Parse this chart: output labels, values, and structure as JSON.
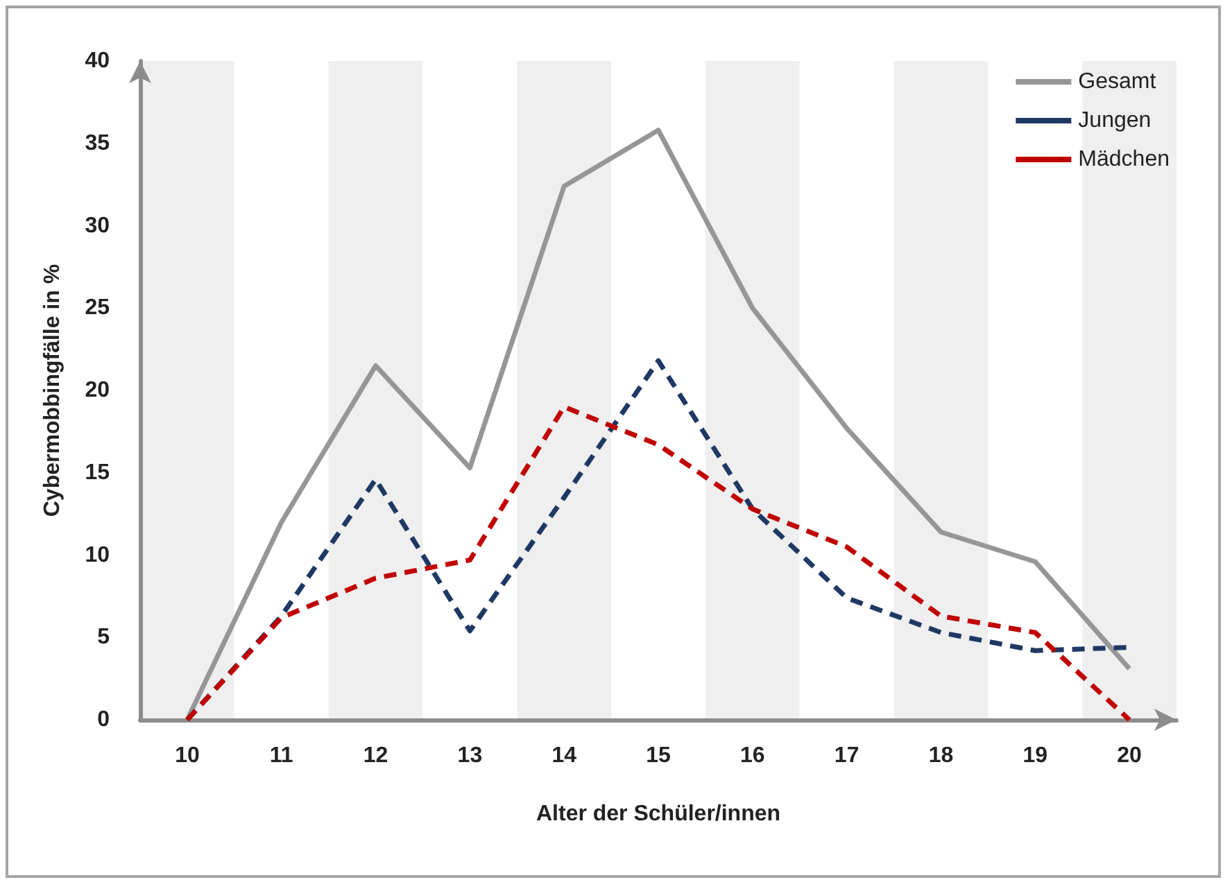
{
  "chart_data": {
    "type": "line",
    "xlabel": "Alter der Schüler/innen",
    "ylabel": "Cybermobbingfälle in %",
    "categories": [
      "10",
      "11",
      "12",
      "13",
      "14",
      "15",
      "16",
      "17",
      "18",
      "19",
      "20"
    ],
    "series": [
      {
        "name": "Gesamt",
        "color": "#969696",
        "line_style": "solid",
        "values": [
          0,
          12,
          21.5,
          15.3,
          32.4,
          35.8,
          25,
          17.7,
          11.4,
          9.6,
          3.1
        ]
      },
      {
        "name": "Jungen",
        "color": "#1f3864",
        "line_style": "dashed",
        "values": [
          0,
          6.3,
          14.6,
          5.4,
          13.5,
          21.8,
          12.8,
          7.4,
          5.3,
          4.2,
          4.4
        ]
      },
      {
        "name": "Mädchen",
        "color": "#c00000",
        "line_style": "dashed",
        "values": [
          0,
          6.2,
          8.6,
          9.7,
          19,
          16.7,
          12.8,
          10.5,
          6.3,
          5.3,
          0
        ]
      }
    ],
    "ylim": [
      0,
      40
    ],
    "yticks": [
      0,
      5,
      10,
      15,
      20,
      25,
      30,
      35,
      40
    ],
    "grid": false,
    "legend": "top right",
    "marker": "none"
  }
}
